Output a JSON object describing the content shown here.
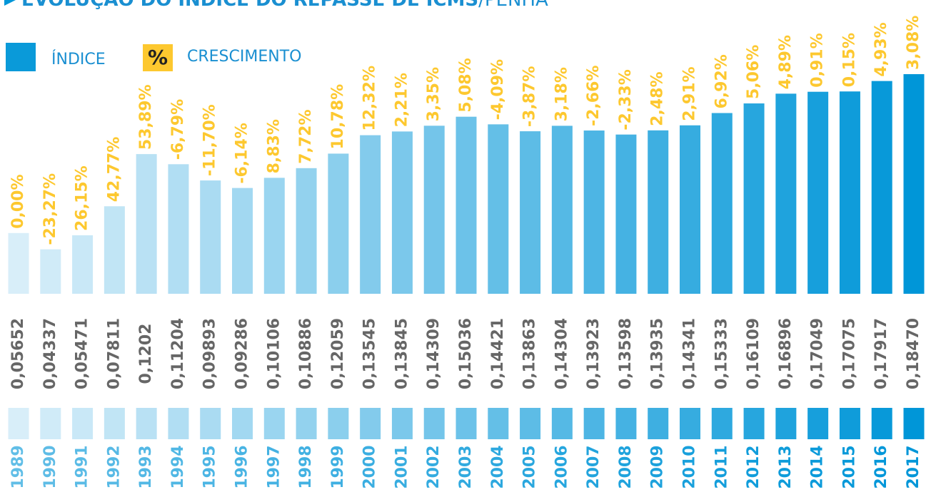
{
  "chart_data": {
    "type": "bar",
    "title": "EVOLUÇÃO DO ÍNDICE DO REPASSE DE ICMS",
    "subtitle": "/PENHA",
    "legend": {
      "index": "ÍNDICE",
      "growth_symbol": "%",
      "growth": "CRESCIMENTO"
    },
    "categories": [
      "1989",
      "1990",
      "1991",
      "1992",
      "1993",
      "1994",
      "1995",
      "1996",
      "1997",
      "1998",
      "1999",
      "2000",
      "2001",
      "2002",
      "2003",
      "2004",
      "2005",
      "2006",
      "2007",
      "2008",
      "2009",
      "2010",
      "2011",
      "2012",
      "2013",
      "2014",
      "2015",
      "2016",
      "2017"
    ],
    "values": [
      0.05652,
      0.04337,
      0.05471,
      0.07811,
      0.1202,
      0.11204,
      0.09893,
      0.09286,
      0.10106,
      0.10886,
      0.12059,
      0.13545,
      0.13845,
      0.14309,
      0.15036,
      0.14421,
      0.13863,
      0.14304,
      0.13923,
      0.13598,
      0.13935,
      0.14341,
      0.15333,
      0.16109,
      0.16896,
      0.17049,
      0.17075,
      0.17917,
      0.1847
    ],
    "value_labels": [
      "0,05652",
      "0,04337",
      "0,05471",
      "0,07811",
      "0,1202",
      "0,11204",
      "0,09893",
      "0,09286",
      "0,10106",
      "0,10886",
      "0,12059",
      "0,13545",
      "0,13845",
      "0,14309",
      "0,15036",
      "0,14421",
      "0,13863",
      "0,14304",
      "0,13923",
      "0,13598",
      "0,13935",
      "0,14341",
      "0,15333",
      "0,16109",
      "0,16896",
      "0,17049",
      "0,17075",
      "0,17917",
      "0,18470"
    ],
    "growth_labels": [
      "0,00%",
      "-23,27%",
      "26,15%",
      "42,77%",
      "53,89%",
      "-6,79%",
      "-11,70%",
      "-6,14%",
      "8,83%",
      "7,72%",
      "10,78%",
      "12,32%",
      "2,21%",
      "3,35%",
      "5,08%",
      "-4,09%",
      "-3,87%",
      "3,18%",
      "-2,66%",
      "-2,33%",
      "2,48%",
      "2,91%",
      "6,92%",
      "5,06%",
      "4,89%",
      "0,91%",
      "0,15%",
      "4,93%",
      "3,08%"
    ],
    "ylim": [
      0.0075,
      0.1847
    ],
    "color_start": "#d8eef9",
    "color_end": "#0096d8",
    "growth_color": "#fdc82f",
    "value_label_color": "#666666"
  }
}
